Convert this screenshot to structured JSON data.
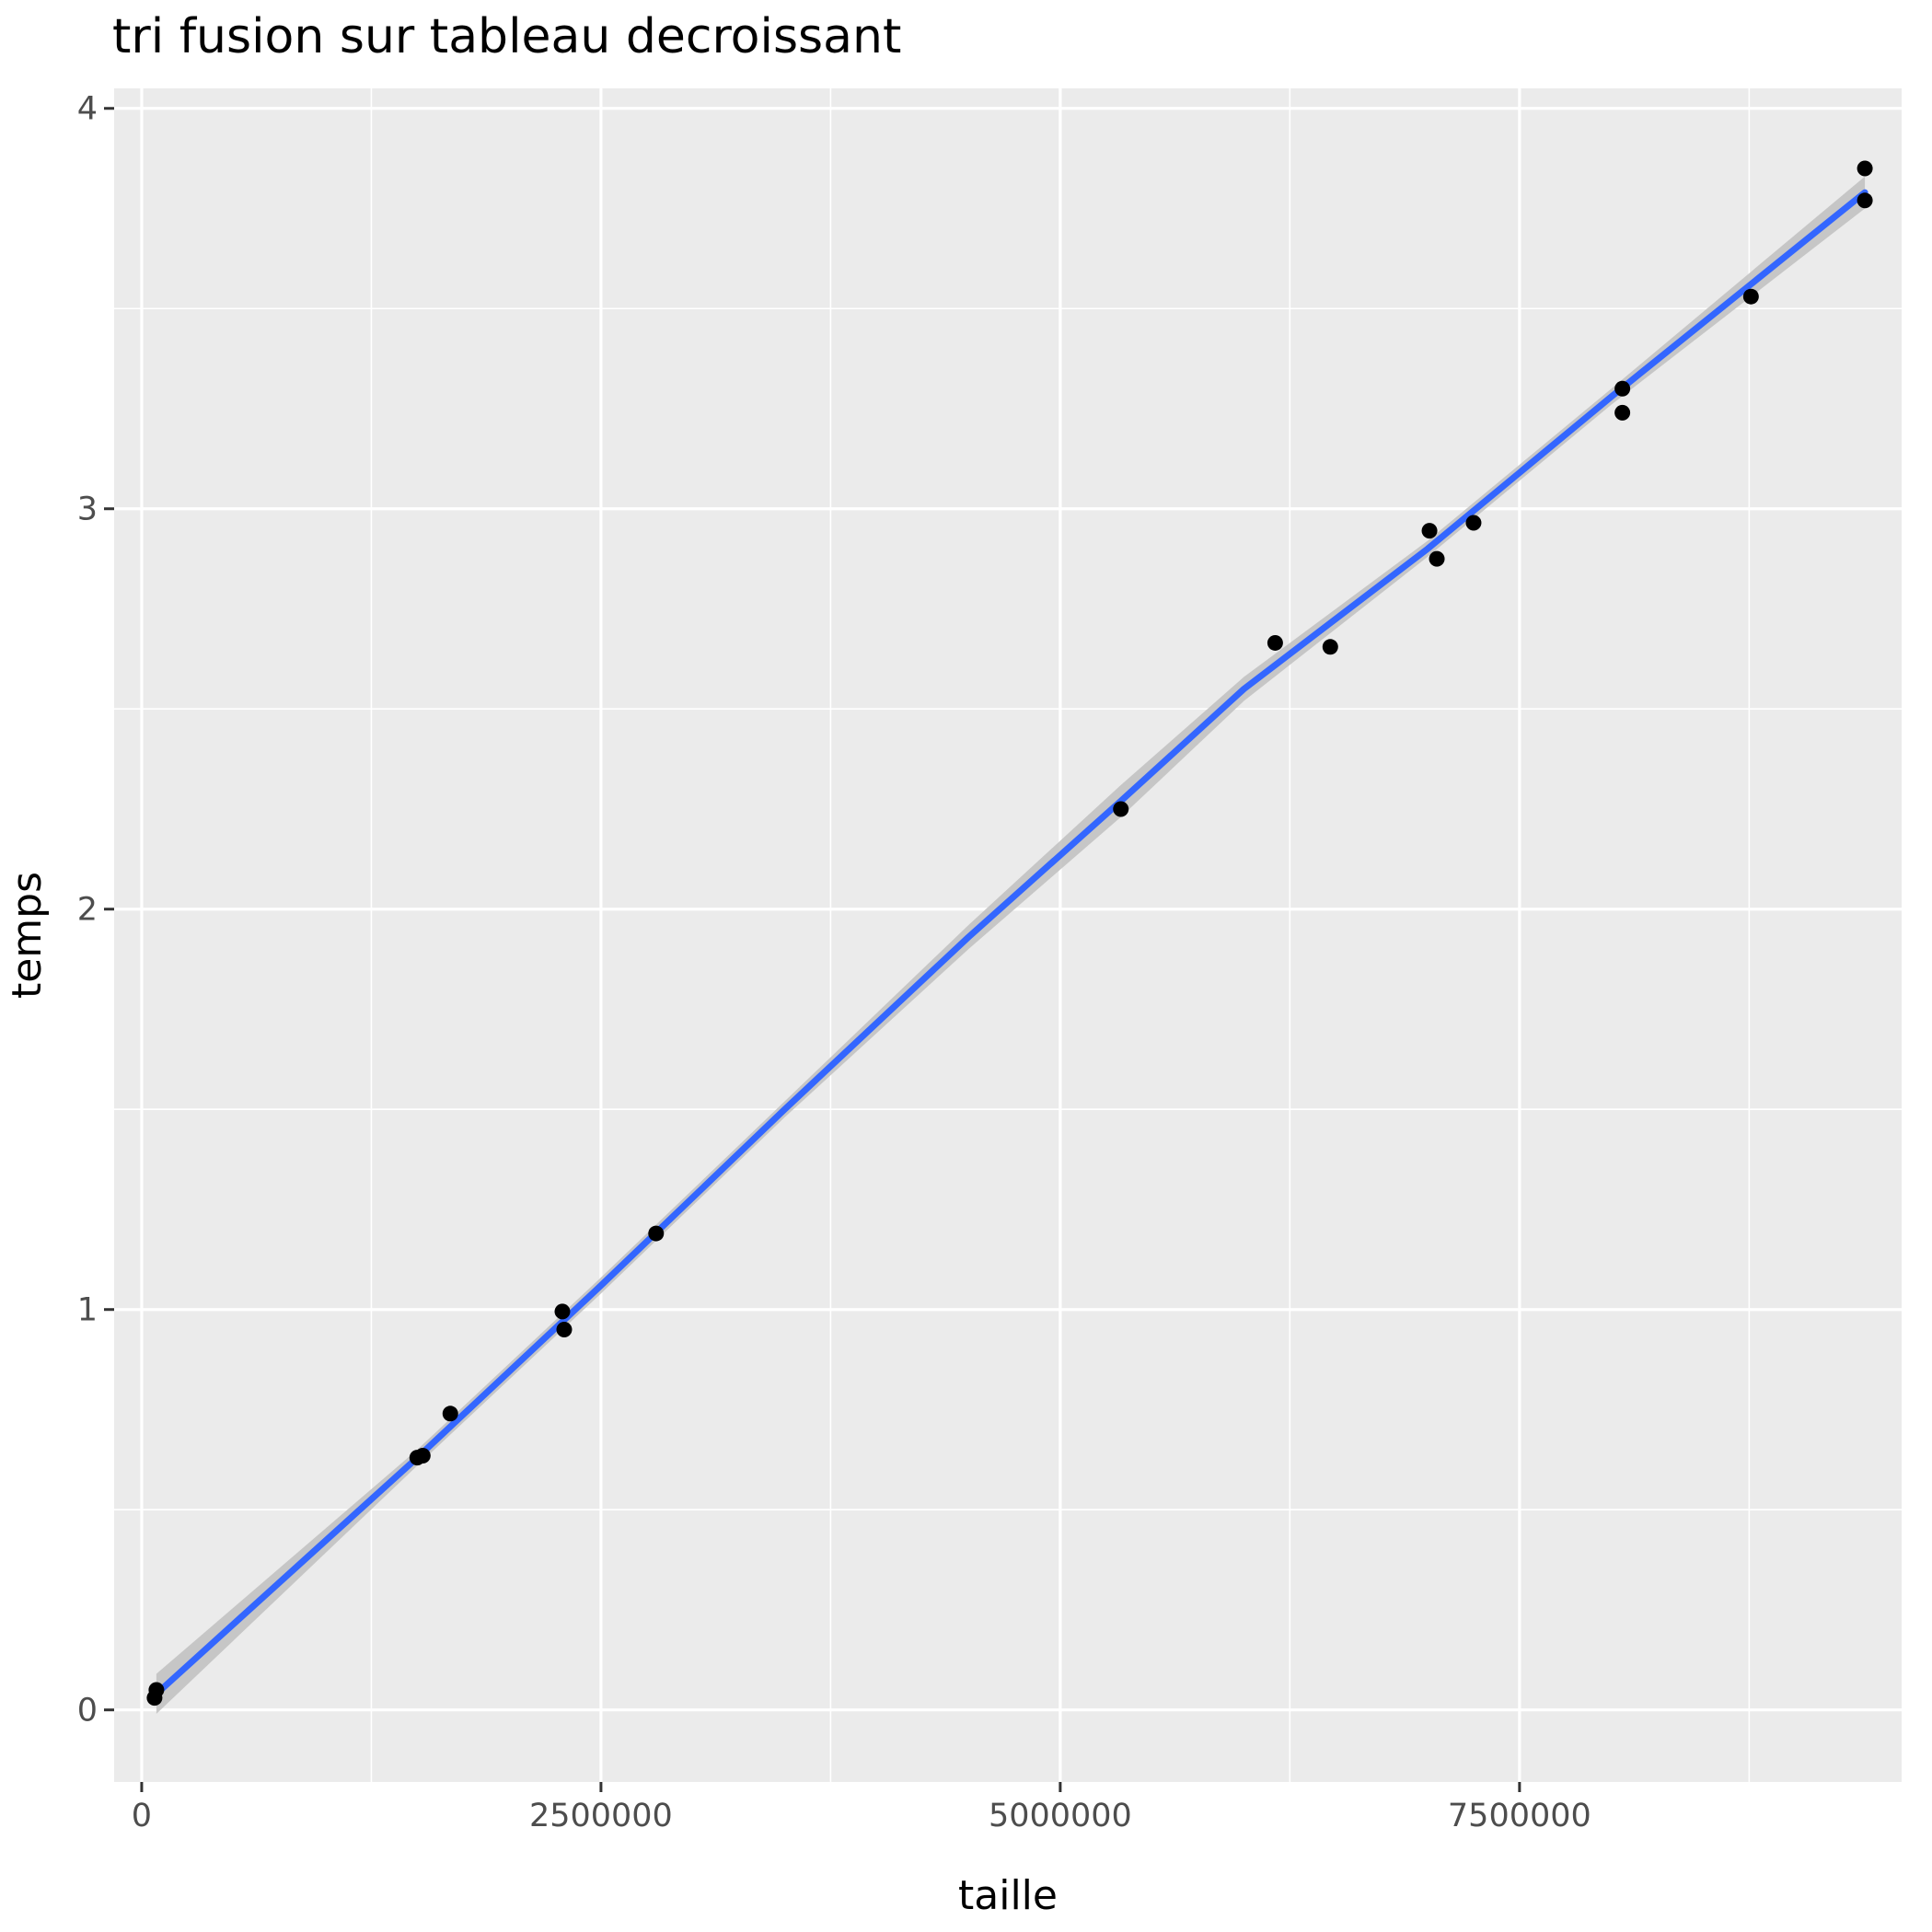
{
  "chart_data": {
    "type": "scatter",
    "title": "tri fusion sur tableau decroissant",
    "xlabel": "taille",
    "ylabel": "temps",
    "xlim": [
      -150000,
      9580000
    ],
    "ylim": [
      -0.18,
      4.05
    ],
    "x_ticks": [
      0,
      2500000,
      5000000,
      7500000
    ],
    "x_tick_labels": [
      "0",
      "2500000",
      "5000000",
      "7500000"
    ],
    "y_ticks": [
      0,
      1,
      2,
      3,
      4
    ],
    "y_tick_labels": [
      "0",
      "1",
      "2",
      "3",
      "4"
    ],
    "grid": true,
    "points": [
      {
        "x": 70000,
        "y": 0.03
      },
      {
        "x": 80000,
        "y": 0.05
      },
      {
        "x": 1500000,
        "y": 0.63
      },
      {
        "x": 1530000,
        "y": 0.635
      },
      {
        "x": 1680000,
        "y": 0.74
      },
      {
        "x": 2290000,
        "y": 0.995
      },
      {
        "x": 2300000,
        "y": 0.95
      },
      {
        "x": 2800000,
        "y": 1.19
      },
      {
        "x": 5330000,
        "y": 2.25
      },
      {
        "x": 6170000,
        "y": 2.665
      },
      {
        "x": 6470000,
        "y": 2.655
      },
      {
        "x": 7010000,
        "y": 2.945
      },
      {
        "x": 7050000,
        "y": 2.875
      },
      {
        "x": 7250000,
        "y": 2.965
      },
      {
        "x": 8060000,
        "y": 3.3
      },
      {
        "x": 8060000,
        "y": 3.24
      },
      {
        "x": 8760000,
        "y": 3.53
      },
      {
        "x": 9380000,
        "y": 3.85
      },
      {
        "x": 9380000,
        "y": 3.77
      }
    ],
    "smooth_line": {
      "color": "#3366ff",
      "ribbon_color": "#bfbfbf",
      "x": [
        80000,
        1500000,
        2500000,
        3500000,
        4500000,
        5330000,
        6000000,
        7000000,
        8000000,
        9380000
      ],
      "y": [
        0.04,
        0.63,
        1.06,
        1.5,
        1.93,
        2.27,
        2.55,
        2.9,
        3.28,
        3.79
      ],
      "se": [
        0.05,
        0.02,
        0.02,
        0.02,
        0.03,
        0.04,
        0.03,
        0.02,
        0.02,
        0.04
      ]
    },
    "colors": {
      "panel_background": "#ebebeb",
      "grid": "#ffffff",
      "point": "#000000"
    }
  }
}
